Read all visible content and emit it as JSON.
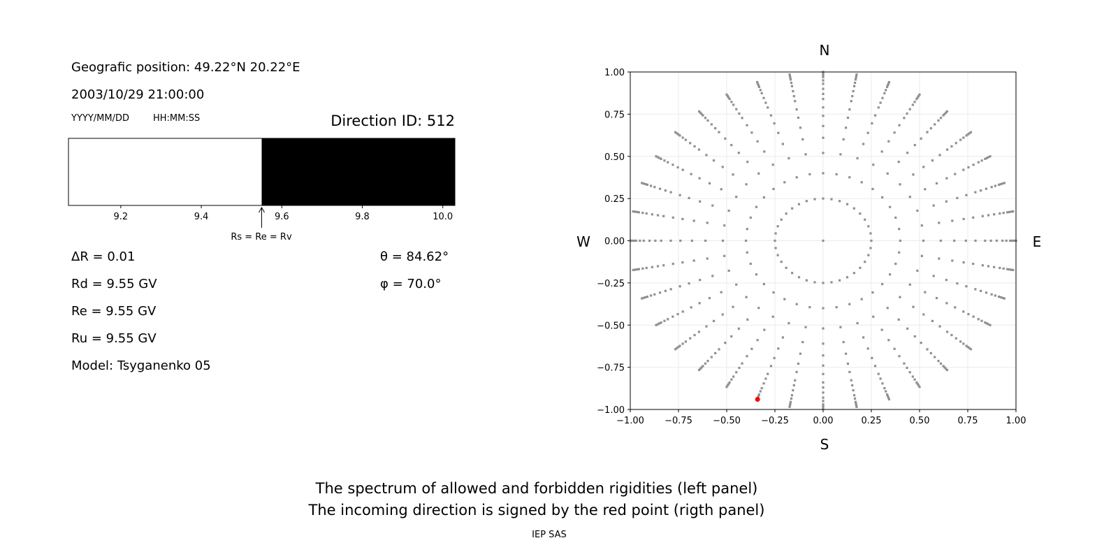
{
  "info": {
    "position": "Geografic position: 49.22°N 20.22°E",
    "datetime": "2003/10/29 21:00:00",
    "date_format": "YYYY/MM/DD",
    "time_format": "HH:MM:SS",
    "direction_id": "Direction ID: 512",
    "delta_r": "ΔR = 0.01",
    "rd": "Rd = 9.55 GV",
    "re": "Re = 9.55 GV",
    "ru": "Ru = 9.55 GV",
    "model": "Model: Tsyganenko 05",
    "theta": "θ = 84.62°",
    "phi": "φ = 70.0°"
  },
  "captions": {
    "line1": "The spectrum of allowed and forbidden rigidities (left panel)",
    "line2": "The incoming direction is signed by the red point (rigth panel)",
    "credit": "IEP SAS"
  },
  "chart_data": [
    {
      "type": "bar",
      "xlim": [
        9.07,
        10.03
      ],
      "xticks": [
        "9.2",
        "9.4",
        "9.6",
        "9.8",
        "10.0"
      ],
      "segments": [
        {
          "from": 9.07,
          "to": 9.55,
          "color": "#ffffff"
        },
        {
          "from": 9.55,
          "to": 10.03,
          "color": "#000000"
        }
      ],
      "annotation": {
        "x": 9.55,
        "text": "Rs = Re = Rv"
      }
    },
    {
      "type": "scatter",
      "xlim": [
        -1,
        1
      ],
      "ylim": [
        -1,
        1
      ],
      "grid": true,
      "xticks": [
        "−1.00",
        "−0.75",
        "−0.50",
        "−0.25",
        "0.00",
        "0.25",
        "0.50",
        "0.75",
        "1.00"
      ],
      "yticks": [
        "−1.00",
        "−0.75",
        "−0.50",
        "−0.25",
        "0.00",
        "0.25",
        "0.50",
        "0.75",
        "1.00"
      ],
      "direction_labels": {
        "n": "N",
        "s": "S",
        "e": "E",
        "w": "W"
      },
      "point_color": "#909090",
      "center_point": [
        0,
        0
      ],
      "ring": {
        "radius": 0.25,
        "azimuth_step_deg": 10
      },
      "rays": {
        "azimuth_step_deg": 10,
        "radii": [
          0.4,
          0.52,
          0.61,
          0.68,
          0.74,
          0.79,
          0.84,
          0.87,
          0.9,
          0.93,
          0.95,
          0.97,
          0.98,
          0.99,
          1.0
        ]
      },
      "highlight": {
        "x": -0.34,
        "y": -0.94,
        "color": "#ff0000"
      }
    }
  ]
}
